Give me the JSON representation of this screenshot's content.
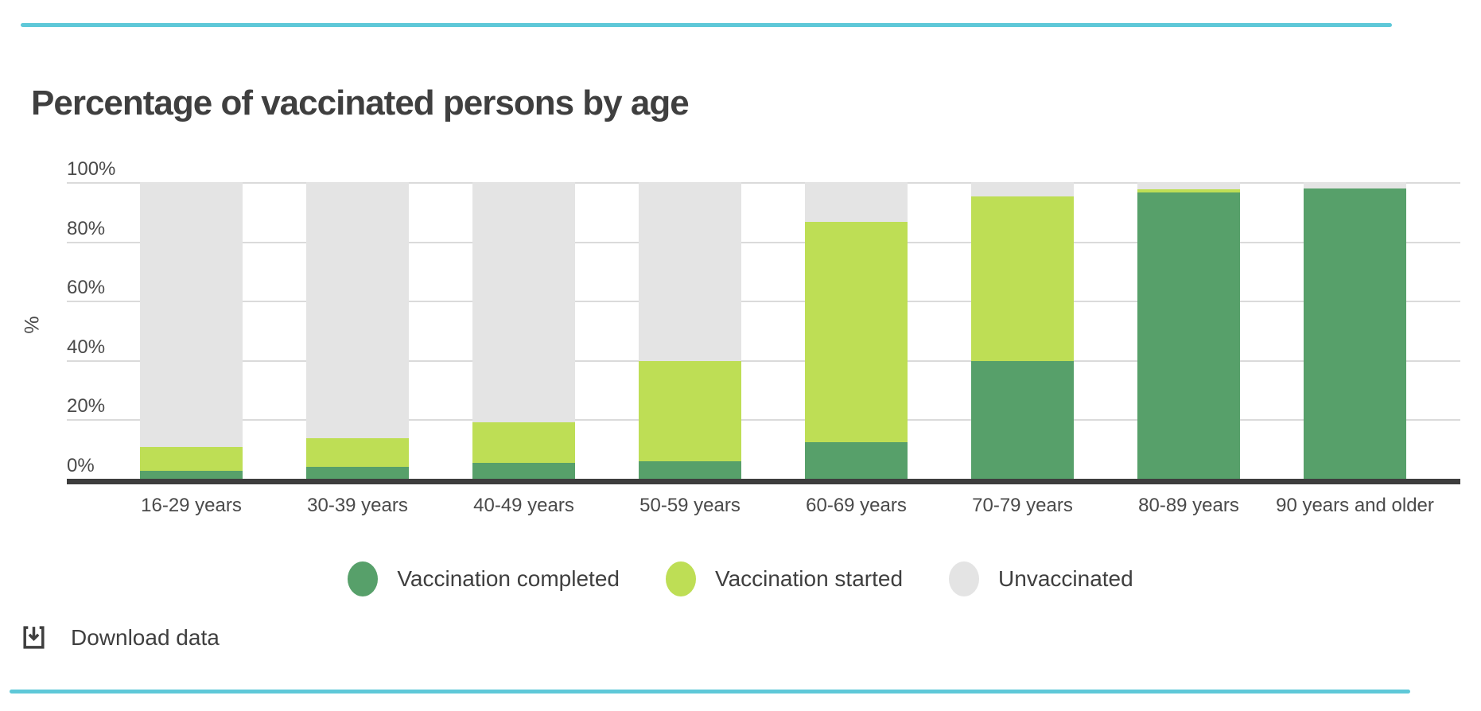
{
  "accent_color": "#5ec8d8",
  "header": {
    "title": "Percentage of vaccinated persons by age"
  },
  "chart_data": {
    "type": "bar",
    "stacked": true,
    "title": "Percentage of vaccinated persons by age",
    "xlabel": "",
    "ylabel": "%",
    "ylim": [
      0,
      100
    ],
    "yticks": [
      "0%",
      "20%",
      "40%",
      "60%",
      "80%",
      "100%"
    ],
    "grid": true,
    "legend_position": "bottom",
    "categories": [
      "16-29 years",
      "30-39 years",
      "40-49 years",
      "50-59 years",
      "60-69 years",
      "70-79 years",
      "80-89 years",
      "90 years and older"
    ],
    "series": [
      {
        "name": "Vaccination completed",
        "color": "#57a06a",
        "values": [
          2.7,
          4.0,
          5.3,
          5.9,
          12.4,
          39.6,
          96.4,
          97.8
        ]
      },
      {
        "name": "Vaccination started",
        "color": "#bede55",
        "values": [
          8.0,
          9.6,
          13.7,
          33.8,
          74.1,
          55.6,
          1.2,
          0.0
        ]
      },
      {
        "name": "Unvaccinated",
        "color": "#e4e4e4",
        "values": [
          89.3,
          86.4,
          81.0,
          60.3,
          13.5,
          4.8,
          2.4,
          2.2
        ]
      }
    ]
  },
  "footer": {
    "download_label": "Download data"
  }
}
